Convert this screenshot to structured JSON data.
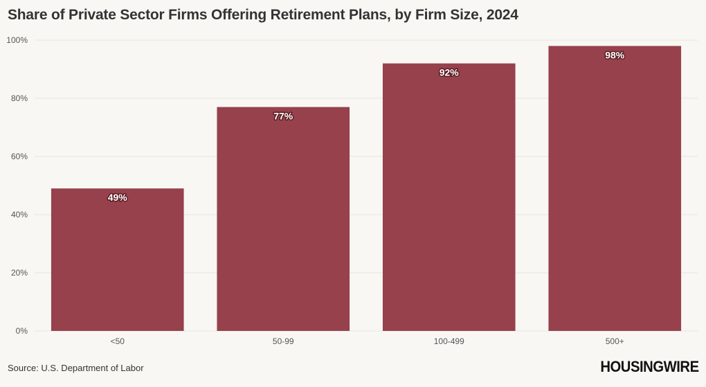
{
  "title": "Share of Private Sector Firms Offering Retirement Plans, by Firm Size, 2024",
  "source": "Source: U.S. Department of Labor",
  "logo_text": "HOUSINGWIRE",
  "colors": {
    "bar": "#96414c",
    "grid": "#e6e4de",
    "background": "#f8f7f3"
  },
  "chart_data": {
    "type": "bar",
    "categories": [
      "<50",
      "50-99",
      "100-499",
      "500+"
    ],
    "values": [
      49,
      77,
      92,
      98
    ],
    "data_labels": [
      "49%",
      "77%",
      "92%",
      "98%"
    ],
    "ylim": [
      0,
      100
    ],
    "yticks": [
      0,
      20,
      40,
      60,
      80,
      100
    ],
    "ytick_labels": [
      "0%",
      "20%",
      "40%",
      "60%",
      "80%",
      "100%"
    ],
    "grid": true,
    "legend": "none"
  }
}
